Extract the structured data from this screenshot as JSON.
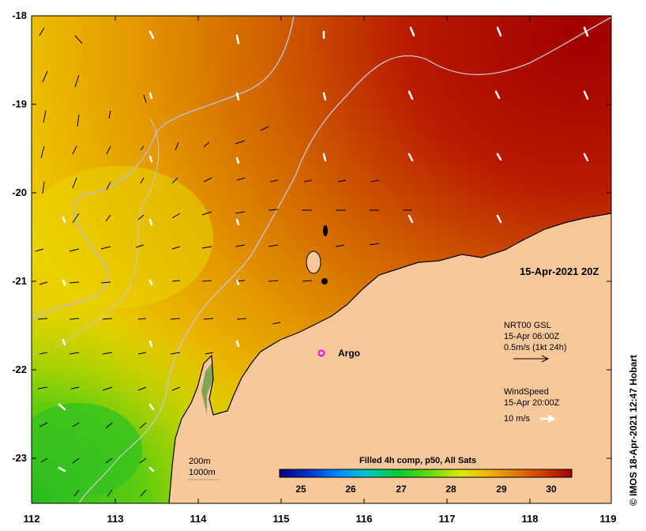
{
  "map": {
    "axes": {
      "x_ticks": [
        "112",
        "113",
        "114",
        "115",
        "116",
        "117",
        "118",
        "119"
      ],
      "y_ticks": [
        "-18",
        "-19",
        "-20",
        "-21",
        "-22",
        "-23"
      ],
      "lon_range": [
        112,
        119
      ],
      "lat_range": [
        -23.5,
        -18
      ]
    },
    "timestamp": "15-Apr-2021 20Z",
    "current_legend": {
      "line1": "NRT00 GSL",
      "line2": "15-Apr 06:00Z",
      "line3": "0.5m/s (1kt 24h)"
    },
    "wind_legend": {
      "line1": "WindSpeed",
      "line2": "15-Apr 20:00Z",
      "line3": "10 m/s"
    },
    "argo": {
      "label": "Argo",
      "lon": 115.5,
      "lat": -21.85,
      "color": "#ff00ff"
    },
    "isobaths": {
      "label_200": "200m",
      "label_1000": "1000m"
    },
    "colorbar": {
      "title": "Filled 4h comp, p50, All Sats",
      "ticks": [
        "25",
        "26",
        "27",
        "28",
        "29",
        "30"
      ],
      "range": [
        24.5,
        30.4
      ],
      "colors": [
        "#00007f",
        "#0033cc",
        "#0088ff",
        "#00c8c8",
        "#00cc33",
        "#66dd00",
        "#e0e800",
        "#f0b000",
        "#e07000",
        "#c83000",
        "#a00000"
      ]
    },
    "land_color": "#f9c89a",
    "credit": "© IMOS 18-Apr-2021 12:47 Hobart"
  }
}
